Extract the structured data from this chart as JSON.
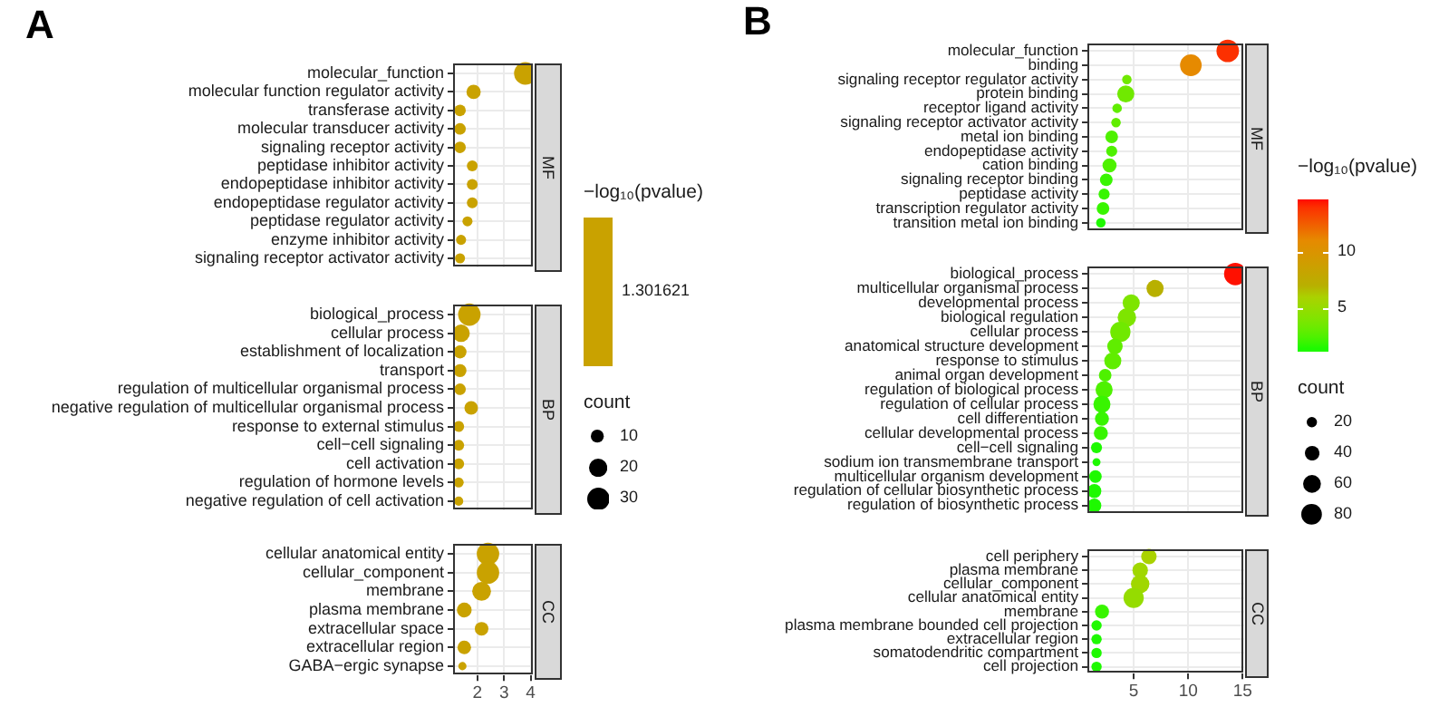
{
  "chart_data": [
    {
      "type": "bubble",
      "annotations": [
        "A",
        "1.301621"
      ],
      "orientation": "horizontal",
      "grid": true,
      "xlim": [
        1.09,
        4.07
      ],
      "xticks": [
        2,
        3,
        4
      ],
      "clabel": "−log₁₀(pvalue)",
      "legend_title": "count",
      "size_legend": [
        10,
        20,
        30
      ],
      "categories": [
        "molecular_function",
        "molecular function regulator activity",
        "transferase activity",
        "molecular transducer activity",
        "signaling receptor activity",
        "peptidase inhibitor activity",
        "endopeptidase inhibitor activity",
        "endopeptidase regulator activity",
        "peptidase regulator activity",
        "enzyme inhibitor activity",
        "signaling receptor activator activity",
        "biological_process",
        "cellular process",
        "establishment of localization",
        "transport",
        "regulation of multicellular organismal process",
        "negative regulation of multicellular organismal process",
        "response to external stimulus",
        "cell−cell signaling",
        "cell activation",
        "regulation of hormone levels",
        "negative regulation of cell activation",
        "cellular anatomical entity",
        "cellular_component",
        "membrane",
        "plasma membrane",
        "extracellular space",
        "extracellular region",
        "GABA−ergic synapse"
      ],
      "series": [
        {
          "name": "MF",
          "color": "#c9a200",
          "values": [
            3.8,
            1.86,
            1.35,
            1.35,
            1.35,
            1.81,
            1.81,
            1.81,
            1.63,
            1.39,
            1.35,
            null,
            null,
            null,
            null,
            null,
            null,
            null,
            null,
            null,
            null,
            null,
            null,
            null,
            null,
            null,
            null,
            null,
            null
          ],
          "sizes": [
            30,
            12,
            8,
            8,
            8,
            7,
            7,
            7,
            6,
            6,
            6,
            null,
            null,
            null,
            null,
            null,
            null,
            null,
            null,
            null,
            null,
            null,
            null,
            null,
            null,
            null,
            null,
            null,
            null
          ]
        },
        {
          "name": "BP",
          "color": "#c9a200",
          "values": [
            null,
            null,
            null,
            null,
            null,
            null,
            null,
            null,
            null,
            null,
            null,
            1.7,
            1.39,
            1.35,
            1.35,
            1.35,
            1.77,
            1.3,
            1.3,
            1.3,
            1.3,
            1.3,
            null,
            null,
            null,
            null,
            null,
            null,
            null
          ],
          "sizes": [
            null,
            null,
            null,
            null,
            null,
            null,
            null,
            null,
            null,
            null,
            null,
            30,
            18,
            10,
            10,
            8,
            11,
            7,
            7,
            7,
            6,
            5,
            null,
            null,
            null,
            null,
            null,
            null,
            null
          ]
        },
        {
          "name": "CC",
          "color": "#c9a200",
          "values": [
            null,
            null,
            null,
            null,
            null,
            null,
            null,
            null,
            null,
            null,
            null,
            null,
            null,
            null,
            null,
            null,
            null,
            null,
            null,
            null,
            null,
            null,
            2.4,
            2.4,
            2.16,
            1.51,
            2.16,
            1.51,
            1.44
          ],
          "sizes": [
            null,
            null,
            null,
            null,
            null,
            null,
            null,
            null,
            null,
            null,
            null,
            null,
            null,
            null,
            null,
            null,
            null,
            null,
            null,
            null,
            null,
            null,
            30,
            30,
            21,
            13,
            11,
            11,
            4
          ]
        }
      ]
    },
    {
      "type": "bubble",
      "annotations": [
        "B"
      ],
      "orientation": "horizontal",
      "grid": true,
      "xlim": [
        0.76,
        15.1
      ],
      "xticks": [
        5,
        10,
        15
      ],
      "clabel": "−log₁₀(pvalue)",
      "clim": [
        1.2,
        14.6
      ],
      "cticks": [
        5,
        10
      ],
      "legend_title": "count",
      "size_legend": [
        20,
        40,
        60,
        80
      ],
      "categories": [
        "molecular_function",
        "binding",
        "signaling receptor regulator activity",
        "protein binding",
        "receptor ligand activity",
        "signaling receptor activator activity",
        "metal ion binding",
        "endopeptidase activity",
        "cation binding",
        "signaling receptor binding",
        "peptidase activity",
        "transcription regulator activity",
        "transition metal ion binding",
        "biological_process",
        "multicellular organismal process",
        "developmental process",
        "biological regulation",
        "cellular process",
        "anatomical structure development",
        "response to stimulus",
        "animal organ development",
        "regulation of biological process",
        "regulation of cellular process",
        "cell differentiation",
        "cellular developmental process",
        "cell−cell signaling",
        "sodium ion transmembrane transport",
        "multicellular organism development",
        "regulation of cellular biosynthetic process",
        "regulation of biosynthetic process",
        "cell periphery",
        "plasma membrane",
        "cellular_component",
        "cellular anatomical entity",
        "membrane",
        "plasma membrane bounded cell projection",
        "extracellular region",
        "somatodendritic compartment",
        "cell projection"
      ],
      "series": [
        {
          "name": "MF",
          "values": [
            13.7,
            10.3,
            4.4,
            4.3,
            3.5,
            3.4,
            3.0,
            3.0,
            2.8,
            2.5,
            2.3,
            2.2,
            2.0,
            null,
            null,
            null,
            null,
            null,
            null,
            null,
            null,
            null,
            null,
            null,
            null,
            null,
            null,
            null,
            null,
            null,
            null,
            null,
            null,
            null,
            null,
            null,
            null,
            null,
            null
          ],
          "sizes": [
            95,
            88,
            17,
            55,
            17,
            17,
            30,
            23,
            37,
            30,
            23,
            30,
            17,
            null,
            null,
            null,
            null,
            null,
            null,
            null,
            null,
            null,
            null,
            null,
            null,
            null,
            null,
            null,
            null,
            null,
            null,
            null,
            null,
            null,
            null,
            null,
            null,
            null,
            null
          ],
          "cvalues": [
            13.9,
            11,
            3.5,
            3.5,
            3,
            3,
            2.5,
            2.5,
            2.5,
            2,
            2,
            2,
            1.5,
            null,
            null,
            null,
            null,
            null,
            null,
            null,
            null,
            null,
            null,
            null,
            null,
            null,
            null,
            null,
            null,
            null,
            null,
            null,
            null,
            null,
            null,
            null,
            null,
            null,
            null
          ],
          "colors": [
            "#fc3000",
            "#e68a00",
            "#70e900",
            "#70e900",
            "#60ed00",
            "#60ed00",
            "#4ef100",
            "#4ef100",
            "#4ef100",
            "#38f500",
            "#38f500",
            "#38f500",
            "#1ef900",
            null,
            null,
            null,
            null,
            null,
            null,
            null,
            null,
            null,
            null,
            null,
            null,
            null,
            null,
            null,
            null,
            null,
            null,
            null,
            null,
            null,
            null,
            null,
            null,
            null,
            null
          ]
        },
        {
          "name": "BP",
          "values": [
            null,
            null,
            null,
            null,
            null,
            null,
            null,
            null,
            null,
            null,
            null,
            null,
            null,
            14.4,
            7.0,
            4.8,
            4.4,
            3.8,
            3.3,
            3.1,
            2.4,
            2.3,
            2.1,
            2.1,
            2.0,
            1.6,
            1.6,
            1.5,
            1.4,
            1.4,
            null,
            null,
            null,
            null,
            null,
            null,
            null,
            null,
            null
          ],
          "sizes": [
            null,
            null,
            null,
            null,
            null,
            null,
            null,
            null,
            null,
            null,
            null,
            null,
            null,
            95,
            55,
            55,
            64,
            77,
            45,
            55,
            30,
            55,
            55,
            37,
            37,
            23,
            12,
            30,
            37,
            37,
            null,
            null,
            null,
            null,
            null,
            null,
            null,
            null,
            null
          ],
          "cvalues": [
            null,
            null,
            null,
            null,
            null,
            null,
            null,
            null,
            null,
            null,
            null,
            null,
            null,
            14.5,
            7,
            4,
            4,
            3.5,
            3,
            3,
            2.5,
            2.5,
            2,
            2,
            2,
            1.5,
            1.5,
            1.5,
            1.5,
            1.5,
            null,
            null,
            null,
            null,
            null,
            null,
            null,
            null,
            null
          ],
          "colors": [
            null,
            null,
            null,
            null,
            null,
            null,
            null,
            null,
            null,
            null,
            null,
            null,
            null,
            "#ff1000",
            "#b8b000",
            "#7ee500",
            "#7ee500",
            "#70e900",
            "#60ed00",
            "#60ed00",
            "#4ef100",
            "#4ef100",
            "#38f500",
            "#38f500",
            "#38f500",
            "#1ef900",
            "#1ef900",
            "#1ef900",
            "#1ef900",
            "#1ef900",
            null,
            null,
            null,
            null,
            null,
            null,
            null,
            null,
            null
          ]
        },
        {
          "name": "CC",
          "values": [
            null,
            null,
            null,
            null,
            null,
            null,
            null,
            null,
            null,
            null,
            null,
            null,
            null,
            null,
            null,
            null,
            null,
            null,
            null,
            null,
            null,
            null,
            null,
            null,
            null,
            null,
            null,
            null,
            null,
            null,
            6.4,
            5.6,
            5.6,
            5.0,
            2.1,
            1.6,
            1.6,
            1.6,
            1.6
          ],
          "sizes": [
            null,
            null,
            null,
            null,
            null,
            null,
            null,
            null,
            null,
            null,
            null,
            null,
            null,
            null,
            null,
            null,
            null,
            null,
            null,
            null,
            null,
            null,
            null,
            null,
            null,
            null,
            null,
            null,
            null,
            null,
            45,
            45,
            64,
            77,
            37,
            20,
            20,
            20,
            20
          ],
          "cvalues": [
            null,
            null,
            null,
            null,
            null,
            null,
            null,
            null,
            null,
            null,
            null,
            null,
            null,
            null,
            null,
            null,
            null,
            null,
            null,
            null,
            null,
            null,
            null,
            null,
            null,
            null,
            null,
            null,
            null,
            null,
            6,
            5.5,
            5.5,
            5,
            2,
            1.5,
            1.5,
            1.5,
            1.5
          ],
          "colors": [
            null,
            null,
            null,
            null,
            null,
            null,
            null,
            null,
            null,
            null,
            null,
            null,
            null,
            null,
            null,
            null,
            null,
            null,
            null,
            null,
            null,
            null,
            null,
            null,
            null,
            null,
            null,
            null,
            null,
            null,
            "#aad200",
            "#a0d700",
            "#a0d700",
            "#95dc00",
            "#38f500",
            "#1ef900",
            "#1ef900",
            "#1ef900",
            "#1ef900"
          ]
        }
      ]
    }
  ]
}
